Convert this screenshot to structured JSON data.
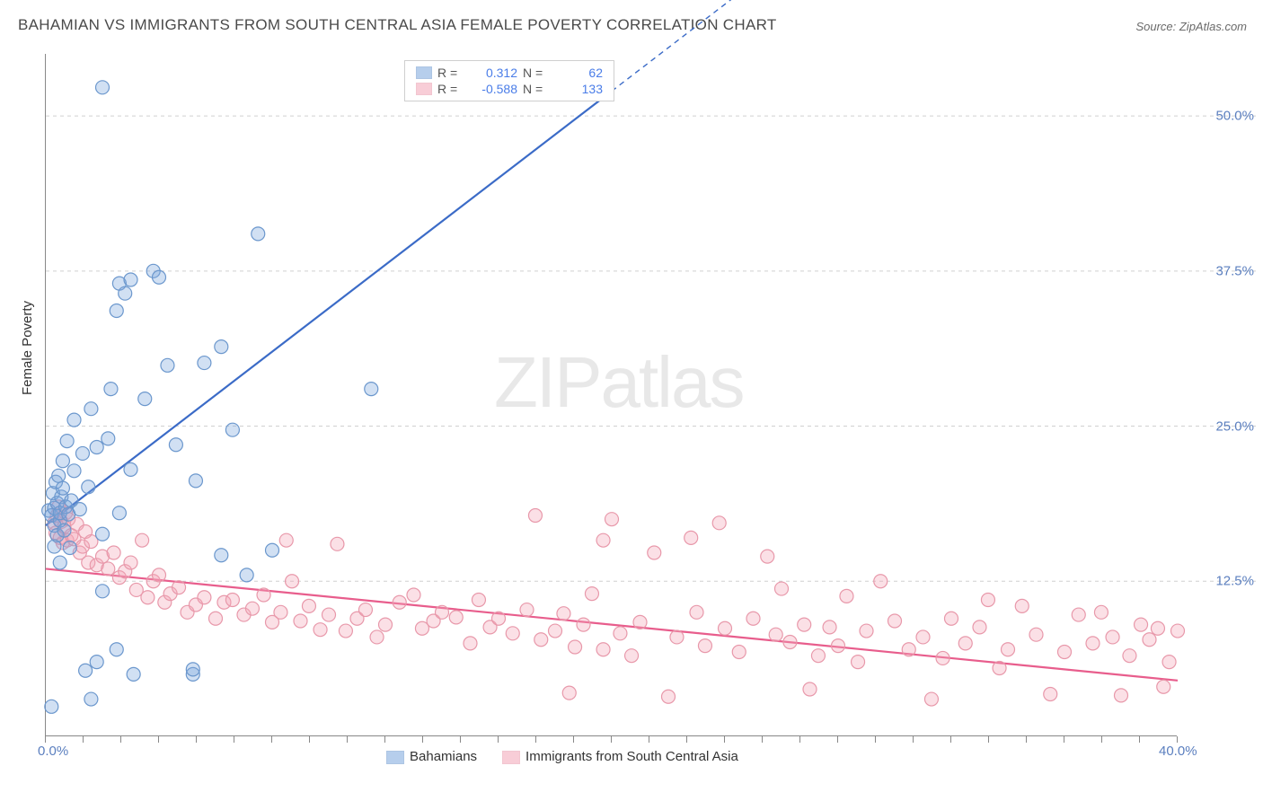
{
  "title": "BAHAMIAN VS IMMIGRANTS FROM SOUTH CENTRAL ASIA FEMALE POVERTY CORRELATION CHART",
  "source": "Source: ZipAtlas.com",
  "ylabel": "Female Poverty",
  "watermark_zip": "ZIP",
  "watermark_atlas": "atlas",
  "chart": {
    "type": "scatter",
    "xlim": [
      0,
      40
    ],
    "ylim": [
      0,
      55
    ],
    "x_ticks": [
      0,
      40
    ],
    "x_tick_labels": [
      "0.0%",
      "40.0%"
    ],
    "y_ticks": [
      12.5,
      25.0,
      37.5,
      50.0
    ],
    "y_tick_labels": [
      "12.5%",
      "25.0%",
      "37.5%",
      "50.0%"
    ],
    "x_minor_tick_count": 30,
    "background_color": "#ffffff",
    "grid_color": "#d0d0d0",
    "grid_dash": "4 4",
    "marker_radius": 7.5,
    "marker_stroke_width": 1.2,
    "series": {
      "A": {
        "label": "Bahamians",
        "fill_color": "#7ba7dd",
        "stroke_color": "#6b97cd",
        "fill_opacity": 0.35,
        "R": "0.312",
        "N": "62",
        "trend": {
          "x1": 0,
          "y1": 17,
          "x2": 20,
          "y2": 52,
          "x2_dash": 32,
          "y2_dash": 73,
          "color": "#3b6bc7",
          "width": 2.2
        },
        "points": [
          [
            0.1,
            18.2
          ],
          [
            0.2,
            17.8
          ],
          [
            0.25,
            19.6
          ],
          [
            0.3,
            17.0
          ],
          [
            0.3,
            18.4
          ],
          [
            0.35,
            20.5
          ],
          [
            0.4,
            16.2
          ],
          [
            0.4,
            18.8
          ],
          [
            0.45,
            21.0
          ],
          [
            0.5,
            17.4
          ],
          [
            0.5,
            18.0
          ],
          [
            0.55,
            19.3
          ],
          [
            0.6,
            20.0
          ],
          [
            0.6,
            22.2
          ],
          [
            0.65,
            16.6
          ],
          [
            0.7,
            18.5
          ],
          [
            0.75,
            23.8
          ],
          [
            0.8,
            17.9
          ],
          [
            0.85,
            15.2
          ],
          [
            0.9,
            19.0
          ],
          [
            1.0,
            21.4
          ],
          [
            1.0,
            25.5
          ],
          [
            1.2,
            18.3
          ],
          [
            0.2,
            2.4
          ],
          [
            1.3,
            22.8
          ],
          [
            1.4,
            5.3
          ],
          [
            1.5,
            20.1
          ],
          [
            1.6,
            26.4
          ],
          [
            1.8,
            6.0
          ],
          [
            1.8,
            23.3
          ],
          [
            2.0,
            16.3
          ],
          [
            2.0,
            11.7
          ],
          [
            2.2,
            24.0
          ],
          [
            2.3,
            28.0
          ],
          [
            2.5,
            34.3
          ],
          [
            2.6,
            18.0
          ],
          [
            2.6,
            36.5
          ],
          [
            3.0,
            21.5
          ],
          [
            3.1,
            5.0
          ],
          [
            3.5,
            27.2
          ],
          [
            3.8,
            37.5
          ],
          [
            4.0,
            37.0
          ],
          [
            4.3,
            29.9
          ],
          [
            4.6,
            23.5
          ],
          [
            5.2,
            5.0
          ],
          [
            5.2,
            5.4
          ],
          [
            5.3,
            20.6
          ],
          [
            5.6,
            30.1
          ],
          [
            6.2,
            14.6
          ],
          [
            6.2,
            31.4
          ],
          [
            6.6,
            24.7
          ],
          [
            7.1,
            13.0
          ],
          [
            7.5,
            40.5
          ],
          [
            8.0,
            15.0
          ],
          [
            1.6,
            3.0
          ],
          [
            2.0,
            52.3
          ],
          [
            2.5,
            7.0
          ],
          [
            2.8,
            35.7
          ],
          [
            3.0,
            36.8
          ],
          [
            11.5,
            28.0
          ],
          [
            0.3,
            15.3
          ],
          [
            0.5,
            14.0
          ]
        ]
      },
      "B": {
        "label": "Immigrants from South Central Asia",
        "fill_color": "#f4a6b8",
        "stroke_color": "#e898aa",
        "fill_opacity": 0.35,
        "R": "-0.588",
        "N": "133",
        "trend": {
          "x1": 0,
          "y1": 13.5,
          "x2": 40,
          "y2": 4.5,
          "color": "#e85d8c",
          "width": 2.2
        },
        "points": [
          [
            0.3,
            17.2
          ],
          [
            0.35,
            16.4
          ],
          [
            0.4,
            17.8
          ],
          [
            0.45,
            18.5
          ],
          [
            0.5,
            16.0
          ],
          [
            0.55,
            17.3
          ],
          [
            0.6,
            15.6
          ],
          [
            0.65,
            16.9
          ],
          [
            0.7,
            18.0
          ],
          [
            0.75,
            15.8
          ],
          [
            0.8,
            17.5
          ],
          [
            0.9,
            16.2
          ],
          [
            1.0,
            15.9
          ],
          [
            1.1,
            17.1
          ],
          [
            1.2,
            14.8
          ],
          [
            1.3,
            15.3
          ],
          [
            1.4,
            16.5
          ],
          [
            1.5,
            14.0
          ],
          [
            1.6,
            15.7
          ],
          [
            1.8,
            13.8
          ],
          [
            2.0,
            14.5
          ],
          [
            2.2,
            13.5
          ],
          [
            2.4,
            14.8
          ],
          [
            2.6,
            12.8
          ],
          [
            2.8,
            13.3
          ],
          [
            3.0,
            14.0
          ],
          [
            3.2,
            11.8
          ],
          [
            3.4,
            15.8
          ],
          [
            3.6,
            11.2
          ],
          [
            3.8,
            12.5
          ],
          [
            4.0,
            13.0
          ],
          [
            4.2,
            10.8
          ],
          [
            4.4,
            11.5
          ],
          [
            4.7,
            12.0
          ],
          [
            5.0,
            10.0
          ],
          [
            5.3,
            10.6
          ],
          [
            5.6,
            11.2
          ],
          [
            6.0,
            9.5
          ],
          [
            6.3,
            10.8
          ],
          [
            6.6,
            11.0
          ],
          [
            7.0,
            9.8
          ],
          [
            7.3,
            10.3
          ],
          [
            7.7,
            11.4
          ],
          [
            8.0,
            9.2
          ],
          [
            8.3,
            10.0
          ],
          [
            8.7,
            12.5
          ],
          [
            9.0,
            9.3
          ],
          [
            9.3,
            10.5
          ],
          [
            9.7,
            8.6
          ],
          [
            10.0,
            9.8
          ],
          [
            10.3,
            15.5
          ],
          [
            10.6,
            8.5
          ],
          [
            11.0,
            9.5
          ],
          [
            11.3,
            10.2
          ],
          [
            11.7,
            8.0
          ],
          [
            12.0,
            9.0
          ],
          [
            12.5,
            10.8
          ],
          [
            13.0,
            11.4
          ],
          [
            13.3,
            8.7
          ],
          [
            13.7,
            9.3
          ],
          [
            14.0,
            10.0
          ],
          [
            14.5,
            9.6
          ],
          [
            15.0,
            7.5
          ],
          [
            15.3,
            11.0
          ],
          [
            15.7,
            8.8
          ],
          [
            16.0,
            9.5
          ],
          [
            16.5,
            8.3
          ],
          [
            17.0,
            10.2
          ],
          [
            17.3,
            17.8
          ],
          [
            17.5,
            7.8
          ],
          [
            18.0,
            8.5
          ],
          [
            18.3,
            9.9
          ],
          [
            18.5,
            3.5
          ],
          [
            18.7,
            7.2
          ],
          [
            19.0,
            9.0
          ],
          [
            19.3,
            11.5
          ],
          [
            19.7,
            15.8
          ],
          [
            19.7,
            7.0
          ],
          [
            20.0,
            17.5
          ],
          [
            20.3,
            8.3
          ],
          [
            20.7,
            6.5
          ],
          [
            21.0,
            9.2
          ],
          [
            21.5,
            14.8
          ],
          [
            22.0,
            3.2
          ],
          [
            22.3,
            8.0
          ],
          [
            22.8,
            16.0
          ],
          [
            23.0,
            10.0
          ],
          [
            23.3,
            7.3
          ],
          [
            23.8,
            17.2
          ],
          [
            24.0,
            8.7
          ],
          [
            24.5,
            6.8
          ],
          [
            25.0,
            9.5
          ],
          [
            25.5,
            14.5
          ],
          [
            25.8,
            8.2
          ],
          [
            26.0,
            11.9
          ],
          [
            26.3,
            7.6
          ],
          [
            26.8,
            9.0
          ],
          [
            27.0,
            3.8
          ],
          [
            27.3,
            6.5
          ],
          [
            27.7,
            8.8
          ],
          [
            28.0,
            7.3
          ],
          [
            28.3,
            11.3
          ],
          [
            28.7,
            6.0
          ],
          [
            29.0,
            8.5
          ],
          [
            29.5,
            12.5
          ],
          [
            30.0,
            9.3
          ],
          [
            30.5,
            7.0
          ],
          [
            31.0,
            8.0
          ],
          [
            31.3,
            3.0
          ],
          [
            31.7,
            6.3
          ],
          [
            32.0,
            9.5
          ],
          [
            32.5,
            7.5
          ],
          [
            33.0,
            8.8
          ],
          [
            33.3,
            11.0
          ],
          [
            33.7,
            5.5
          ],
          [
            34.0,
            7.0
          ],
          [
            34.5,
            10.5
          ],
          [
            35.0,
            8.2
          ],
          [
            35.5,
            3.4
          ],
          [
            36.0,
            6.8
          ],
          [
            36.5,
            9.8
          ],
          [
            37.0,
            7.5
          ],
          [
            37.3,
            10.0
          ],
          [
            37.7,
            8.0
          ],
          [
            38.0,
            3.3
          ],
          [
            38.3,
            6.5
          ],
          [
            38.7,
            9.0
          ],
          [
            39.0,
            7.8
          ],
          [
            39.3,
            8.7
          ],
          [
            39.5,
            4.0
          ],
          [
            39.7,
            6.0
          ],
          [
            40.0,
            8.5
          ],
          [
            8.5,
            15.8
          ]
        ]
      }
    }
  },
  "legend_top": {
    "r_label": "R =",
    "n_label": "N ="
  }
}
